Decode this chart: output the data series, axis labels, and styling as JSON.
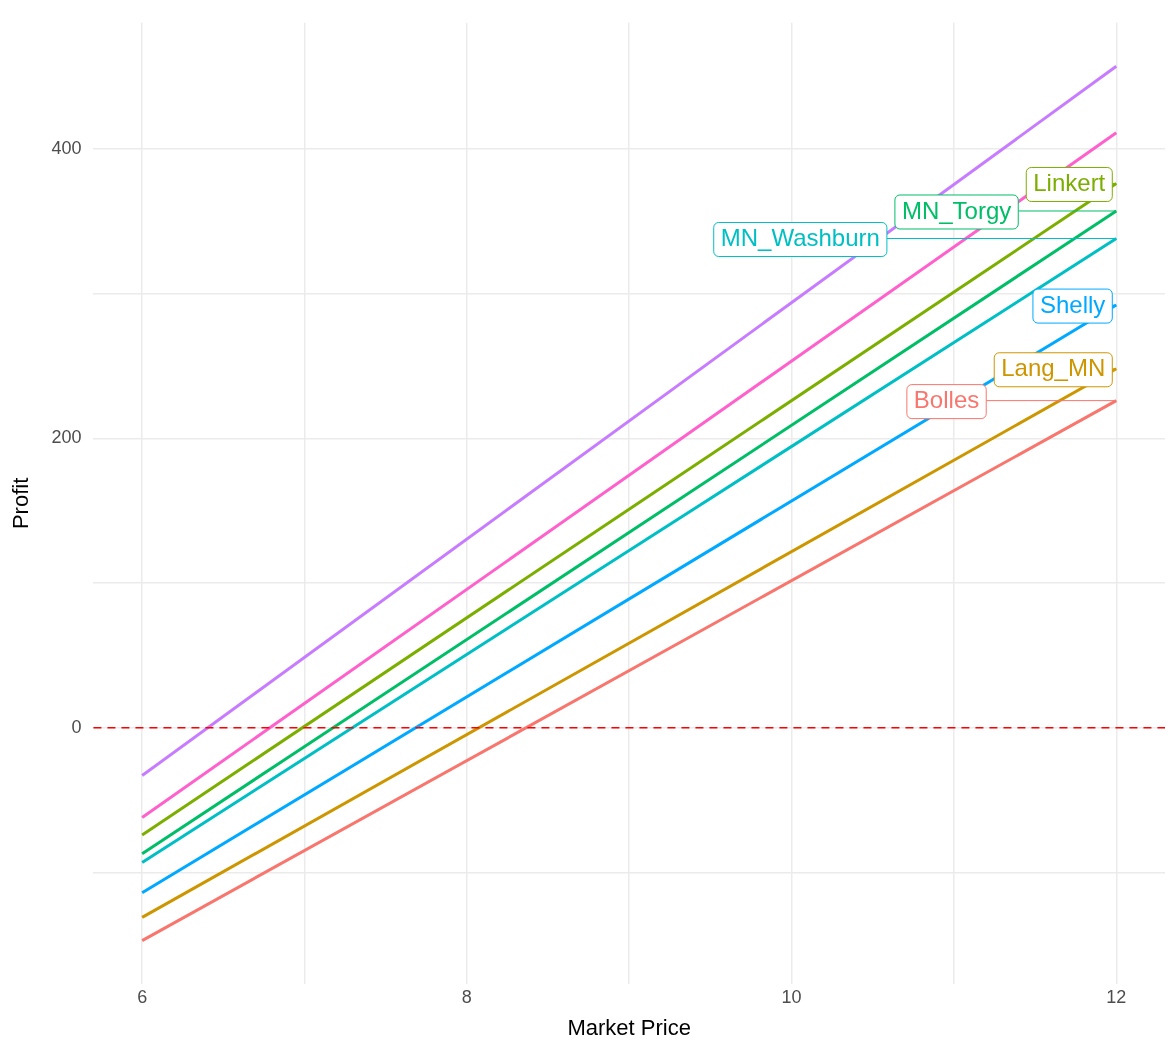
{
  "chart_data": {
    "type": "line",
    "xlabel": "Market Price",
    "ylabel": "Profit",
    "x": [
      6,
      12
    ],
    "xlim": [
      5.7,
      12.3
    ],
    "xticks": [
      6,
      {
        "value": 7,
        "label": null
      },
      8,
      {
        "value": 9,
        "label": null
      },
      10,
      {
        "value": 11,
        "label": null
      },
      12
    ],
    "ylim": [
      -177,
      487
    ],
    "yticks": [
      {
        "value": -100,
        "label": null
      },
      0,
      {
        "value": 100,
        "label": null
      },
      200,
      {
        "value": 300,
        "label": null
      },
      400
    ],
    "grid": true,
    "legend": "right",
    "marker": "none",
    "line_style": "solid",
    "ref_lines": [
      {
        "axis": "y",
        "value": 0,
        "color": "#ff0000",
        "line_style": "dashed"
      }
    ],
    "series": [
      {
        "name": "Bolles",
        "color": "#f8766d",
        "values": [
          -147,
          226
        ]
      },
      {
        "name": "Lang_MN",
        "color": "#cd9600",
        "values": [
          -131,
          248
        ]
      },
      {
        "name": "Linkert",
        "color": "#7cae00",
        "values": [
          -74,
          376
        ]
      },
      {
        "name": "MN_Torgy",
        "color": "#00be67",
        "values": [
          -87,
          357
        ]
      },
      {
        "name": "MN_Washburn",
        "color": "#00bfc4",
        "values": [
          -93,
          338
        ]
      },
      {
        "name": "Shelly",
        "color": "#00a9ff",
        "values": [
          -114,
          292
        ]
      },
      {
        "color": "#c77cff",
        "values": [
          -33,
          457
        ]
      },
      {
        "color": "#ff61cc",
        "values": [
          -62,
          411
        ]
      }
    ]
  }
}
